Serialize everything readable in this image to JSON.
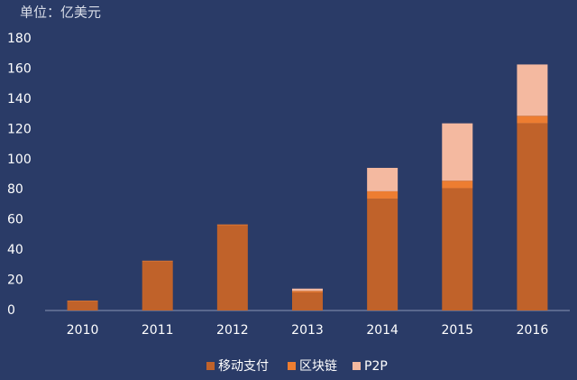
{
  "chart_data": {
    "type": "stacked_bar",
    "title": "单位：亿美元",
    "categories": [
      "2010",
      "2011",
      "2012",
      "2013",
      "2014",
      "2015",
      "2016"
    ],
    "series": [
      {
        "name": "移动支付",
        "color": "#c0622a",
        "values": [
          6,
          32.5,
          56.5,
          12,
          74,
          81,
          124
        ]
      },
      {
        "name": "区块链",
        "color": "#ed7d31",
        "values": [
          0.5,
          0.5,
          0.5,
          1,
          5,
          5,
          5
        ]
      },
      {
        "name": "P2P",
        "color": "#f4b9a0",
        "values": [
          0,
          0,
          0,
          1.5,
          15.5,
          38,
          34
        ]
      }
    ],
    "ylim": [
      0,
      180
    ],
    "yticks": [
      0,
      20,
      40,
      60,
      80,
      100,
      120,
      140,
      160,
      180
    ],
    "legend": "bottom"
  }
}
